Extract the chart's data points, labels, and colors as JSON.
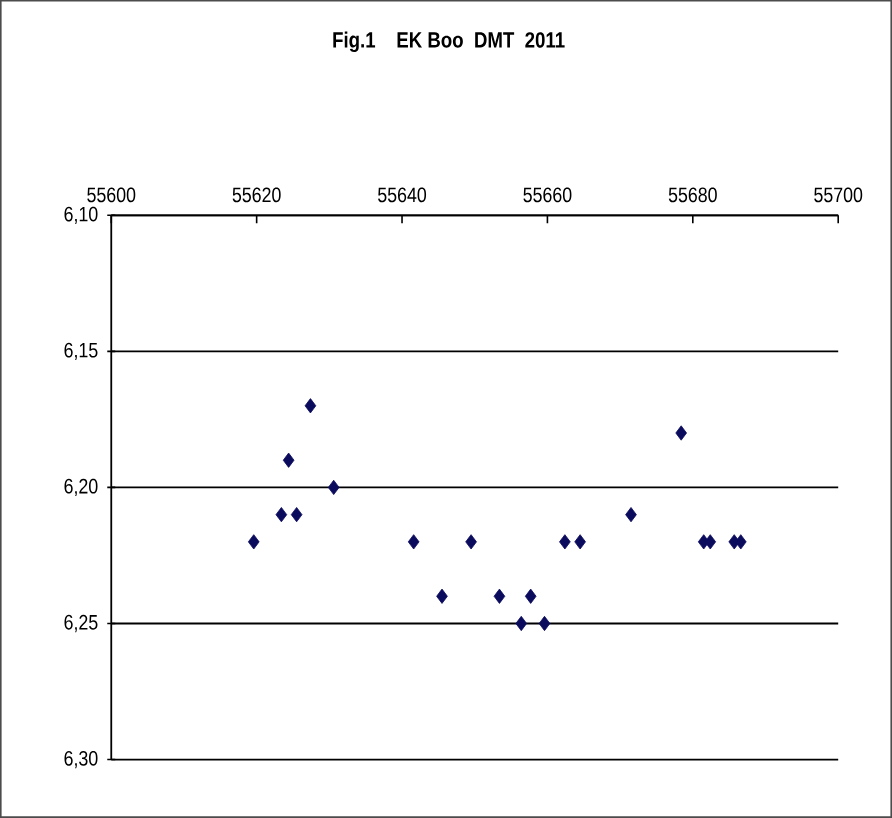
{
  "chart_data": {
    "type": "scatter",
    "title": "Fig.1    EK Boo  DMT  2011",
    "x": [
      55619.6,
      55623.4,
      55624.4,
      55625.5,
      55627.4,
      55630.6,
      55641.6,
      55645.5,
      55649.5,
      55653.4,
      55656.4,
      55657.7,
      55659.6,
      55662.4,
      55664.5,
      55671.5,
      55678.4,
      55681.5,
      55682.4,
      55685.7,
      55686.6
    ],
    "series": [
      {
        "color": "#0b0b5e",
        "values": [
          6.22,
          6.21,
          6.19,
          6.21,
          6.17,
          6.2,
          6.22,
          6.24,
          6.22,
          6.24,
          6.25,
          6.24,
          6.25,
          6.22,
          6.22,
          6.21,
          6.18,
          6.22,
          6.22,
          6.22,
          6.22
        ]
      }
    ],
    "xlim": [
      55600,
      55700
    ],
    "xticks": [
      55600,
      55620,
      55640,
      55660,
      55680,
      55700
    ],
    "ylim": [
      6.3,
      6.1
    ],
    "yticks": [
      {
        "value": 6.1,
        "label": "6,10"
      },
      {
        "value": 6.15,
        "label": "6,15"
      },
      {
        "value": 6.2,
        "label": "6,20"
      },
      {
        "value": 6.25,
        "label": "6,25"
      },
      {
        "value": 6.3,
        "label": "6,30"
      }
    ],
    "grid": "y",
    "marker": "diamond"
  }
}
